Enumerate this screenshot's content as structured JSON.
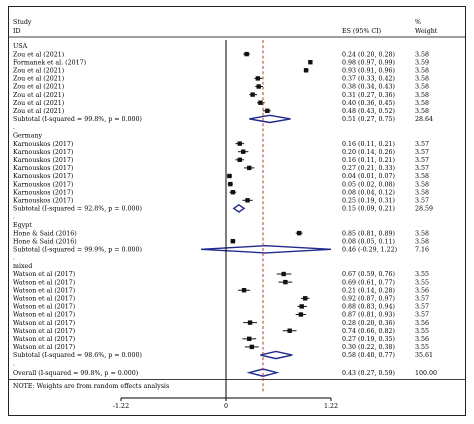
{
  "colors": {
    "accent": "#1f2a8c",
    "null_line": "#c0392b",
    "marker": "#111111"
  },
  "header": {
    "col1_top": "Study",
    "col1_bottom": "ID",
    "es_label": "ES (95% CI)",
    "weight_top": "%",
    "weight_bottom": "Weight"
  },
  "footnote": "NOTE: Weights are from random effects analysis",
  "chart_data": {
    "type": "forest",
    "xlim": [
      -1.22,
      1.22
    ],
    "ticks": [
      "-1.22",
      "0",
      "1.22"
    ],
    "overall_es": 0.43,
    "groups": [
      {
        "name": "USA",
        "studies": [
          {
            "label": "Zou et al (2021)",
            "es": 0.24,
            "lo": 0.2,
            "hi": 0.28,
            "es_text": "0.24 (0.20, 0.28)",
            "weight": "3.58"
          },
          {
            "label": "Formanek et al. (2017)",
            "es": 0.98,
            "lo": 0.97,
            "hi": 0.99,
            "es_text": "0.98 (0.97, 0.99)",
            "weight": "3.59"
          },
          {
            "label": "Zou et al (2021)",
            "es": 0.93,
            "lo": 0.91,
            "hi": 0.96,
            "es_text": "0.93 (0.91, 0.96)",
            "weight": "3.58"
          },
          {
            "label": "Zou et al (2021)",
            "es": 0.37,
            "lo": 0.33,
            "hi": 0.42,
            "es_text": "0.37 (0.33, 0.42)",
            "weight": "3.58"
          },
          {
            "label": "Zou et al (2021)",
            "es": 0.38,
            "lo": 0.34,
            "hi": 0.43,
            "es_text": "0.38 (0.34, 0.43)",
            "weight": "3.58"
          },
          {
            "label": "Zou et al (2021)",
            "es": 0.31,
            "lo": 0.27,
            "hi": 0.36,
            "es_text": "0.31 (0.27, 0.36)",
            "weight": "3.58"
          },
          {
            "label": "Zou et al (2021)",
            "es": 0.4,
            "lo": 0.36,
            "hi": 0.45,
            "es_text": "0.40 (0.36, 0.45)",
            "weight": "3.58"
          },
          {
            "label": "Zou et al (2021)",
            "es": 0.48,
            "lo": 0.43,
            "hi": 0.52,
            "es_text": "0.48 (0.43, 0.52)",
            "weight": "3.58"
          }
        ],
        "subtotal": {
          "label": "Subtotal  (I-squared = 99.8%, p = 0.000)",
          "es": 0.51,
          "lo": 0.27,
          "hi": 0.75,
          "es_text": "0.51 (0.27, 0.75)",
          "weight": "28.64"
        }
      },
      {
        "name": "Germany",
        "studies": [
          {
            "label": "Karnouskos (2017)",
            "es": 0.16,
            "lo": 0.11,
            "hi": 0.21,
            "es_text": "0.16 (0.11, 0.21)",
            "weight": "3.57"
          },
          {
            "label": "Karnouskos (2017)",
            "es": 0.2,
            "lo": 0.14,
            "hi": 0.26,
            "es_text": "0.20 (0.14, 0.26)",
            "weight": "3.57"
          },
          {
            "label": "Karnouskos (2017)",
            "es": 0.16,
            "lo": 0.11,
            "hi": 0.21,
            "es_text": "0.16 (0.11, 0.21)",
            "weight": "3.57"
          },
          {
            "label": "Karnouskos (2017)",
            "es": 0.27,
            "lo": 0.21,
            "hi": 0.33,
            "es_text": "0.27 (0.21, 0.33)",
            "weight": "3.57"
          },
          {
            "label": "Karnouskos (2017)",
            "es": 0.04,
            "lo": 0.01,
            "hi": 0.07,
            "es_text": "0.04 (0.01, 0.07)",
            "weight": "3.58"
          },
          {
            "label": "Karnouskos (2017)",
            "es": 0.05,
            "lo": 0.02,
            "hi": 0.08,
            "es_text": "0.05 (0.02, 0.08)",
            "weight": "3.58"
          },
          {
            "label": "Karnouskos (2017)",
            "es": 0.08,
            "lo": 0.04,
            "hi": 0.12,
            "es_text": "0.08 (0.04, 0.12)",
            "weight": "3.58"
          },
          {
            "label": "Karnouskos (2017)",
            "es": 0.25,
            "lo": 0.19,
            "hi": 0.31,
            "es_text": "0.25 (0.19, 0.31)",
            "weight": "3.57"
          }
        ],
        "subtotal": {
          "label": "Subtotal  (I-squared = 92.8%, p = 0.000)",
          "es": 0.15,
          "lo": 0.09,
          "hi": 0.21,
          "es_text": "0.15 (0.09, 0.21)",
          "weight": "28.59"
        }
      },
      {
        "name": "Egypt",
        "studies": [
          {
            "label": "Hone & Said (2016)",
            "es": 0.85,
            "lo": 0.81,
            "hi": 0.89,
            "es_text": "0.85 (0.81, 0.89)",
            "weight": "3.58"
          },
          {
            "label": "Hone & Said (2016)",
            "es": 0.08,
            "lo": 0.05,
            "hi": 0.11,
            "es_text": "0.08 (0.05, 0.11)",
            "weight": "3.58"
          }
        ],
        "subtotal": {
          "label": "Subtotal  (I-squared = 99.9%, p = 0.000)",
          "es": 0.46,
          "lo": -0.29,
          "hi": 1.22,
          "es_text": "0.46 (-0.29, 1.22)",
          "weight": "7.16"
        }
      },
      {
        "name": "mixed",
        "studies": [
          {
            "label": "Watson et al (2017)",
            "es": 0.67,
            "lo": 0.59,
            "hi": 0.76,
            "es_text": "0.67 (0.59, 0.76)",
            "weight": "3.55"
          },
          {
            "label": "Watson et al (2017)",
            "es": 0.69,
            "lo": 0.61,
            "hi": 0.77,
            "es_text": "0.69 (0.61, 0.77)",
            "weight": "3.55"
          },
          {
            "label": "Watson et al (2017)",
            "es": 0.21,
            "lo": 0.14,
            "hi": 0.28,
            "es_text": "0.21 (0.14, 0.28)",
            "weight": "3.56"
          },
          {
            "label": "Watson et al (2017)",
            "es": 0.92,
            "lo": 0.87,
            "hi": 0.97,
            "es_text": "0.92 (0.87, 0.97)",
            "weight": "3.57"
          },
          {
            "label": "Watson et al (2017)",
            "es": 0.88,
            "lo": 0.83,
            "hi": 0.94,
            "es_text": "0.88 (0.83, 0.94)",
            "weight": "3.57"
          },
          {
            "label": "Watson et al (2017)",
            "es": 0.87,
            "lo": 0.81,
            "hi": 0.93,
            "es_text": "0.87 (0.81, 0.93)",
            "weight": "3.57"
          },
          {
            "label": "Watson et al (2017)",
            "es": 0.28,
            "lo": 0.2,
            "hi": 0.36,
            "es_text": "0.28 (0.20, 0.36)",
            "weight": "3.56"
          },
          {
            "label": "Watson et al (2017)",
            "es": 0.74,
            "lo": 0.66,
            "hi": 0.82,
            "es_text": "0.74 (0.66, 0.82)",
            "weight": "3.55"
          },
          {
            "label": "Watson et al (2017)",
            "es": 0.27,
            "lo": 0.19,
            "hi": 0.35,
            "es_text": "0.27 (0.19, 0.35)",
            "weight": "3.56"
          },
          {
            "label": "Watson et al (2017)",
            "es": 0.3,
            "lo": 0.22,
            "hi": 0.38,
            "es_text": "0.30 (0.22, 0.38)",
            "weight": "3.55"
          }
        ],
        "subtotal": {
          "label": "Subtotal  (I-squared = 98.6%, p = 0.000)",
          "es": 0.58,
          "lo": 0.4,
          "hi": 0.77,
          "es_text": "0.58 (0.40, 0.77)",
          "weight": "35.61"
        }
      }
    ],
    "overall": {
      "label": "Overall  (I-squared = 99.8%, p = 0.000)",
      "es": 0.43,
      "lo": 0.27,
      "hi": 0.59,
      "es_text": "0.43 (0.27, 0.59)",
      "weight": "100.00"
    }
  }
}
